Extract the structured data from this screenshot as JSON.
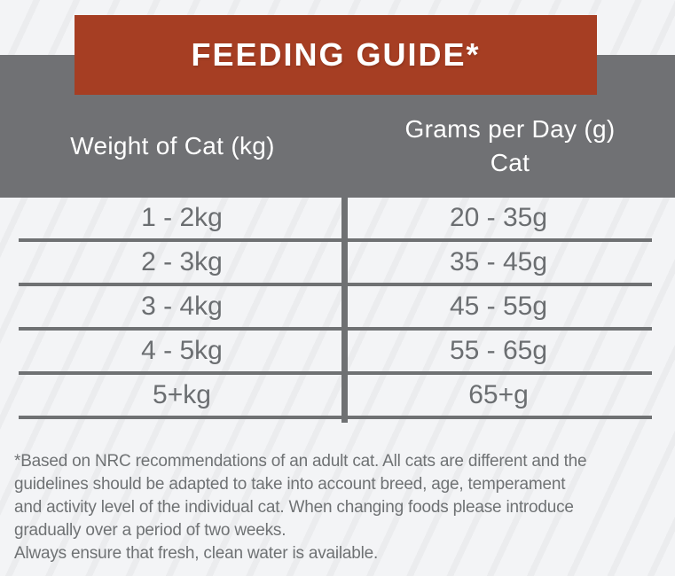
{
  "banner": {
    "title": "FEEDING GUIDE*"
  },
  "table": {
    "header": {
      "weight_label": "Weight of Cat (kg)",
      "grams_label_line1": "Grams per Day (g)",
      "grams_label_line2": "Cat"
    },
    "rows": [
      {
        "weight": "1 - 2kg",
        "grams": "20 - 35g"
      },
      {
        "weight": "2 - 3kg",
        "grams": "35 - 45g"
      },
      {
        "weight": "3 - 4kg",
        "grams": "45 - 55g"
      },
      {
        "weight": "4 - 5kg",
        "grams": "55 - 65g"
      },
      {
        "weight": "5+kg",
        "grams": "65+g"
      }
    ]
  },
  "footnote": {
    "lines": [
      "*Based on NRC recommendations of an adult cat. All cats are different and the",
      "guidelines should be adapted to take into account breed, age, temperament",
      "and activity level of the individual cat. When changing foods please introduce",
      "gradually over a period of two weeks.",
      "Always ensure that fresh, clean water is available."
    ]
  },
  "colors": {
    "accent_red": "#A63E23",
    "band_gray": "#707174",
    "line_gray": "#6F7173",
    "cell_text_gray": "#6B6E71",
    "background": "#F3F4F6"
  }
}
